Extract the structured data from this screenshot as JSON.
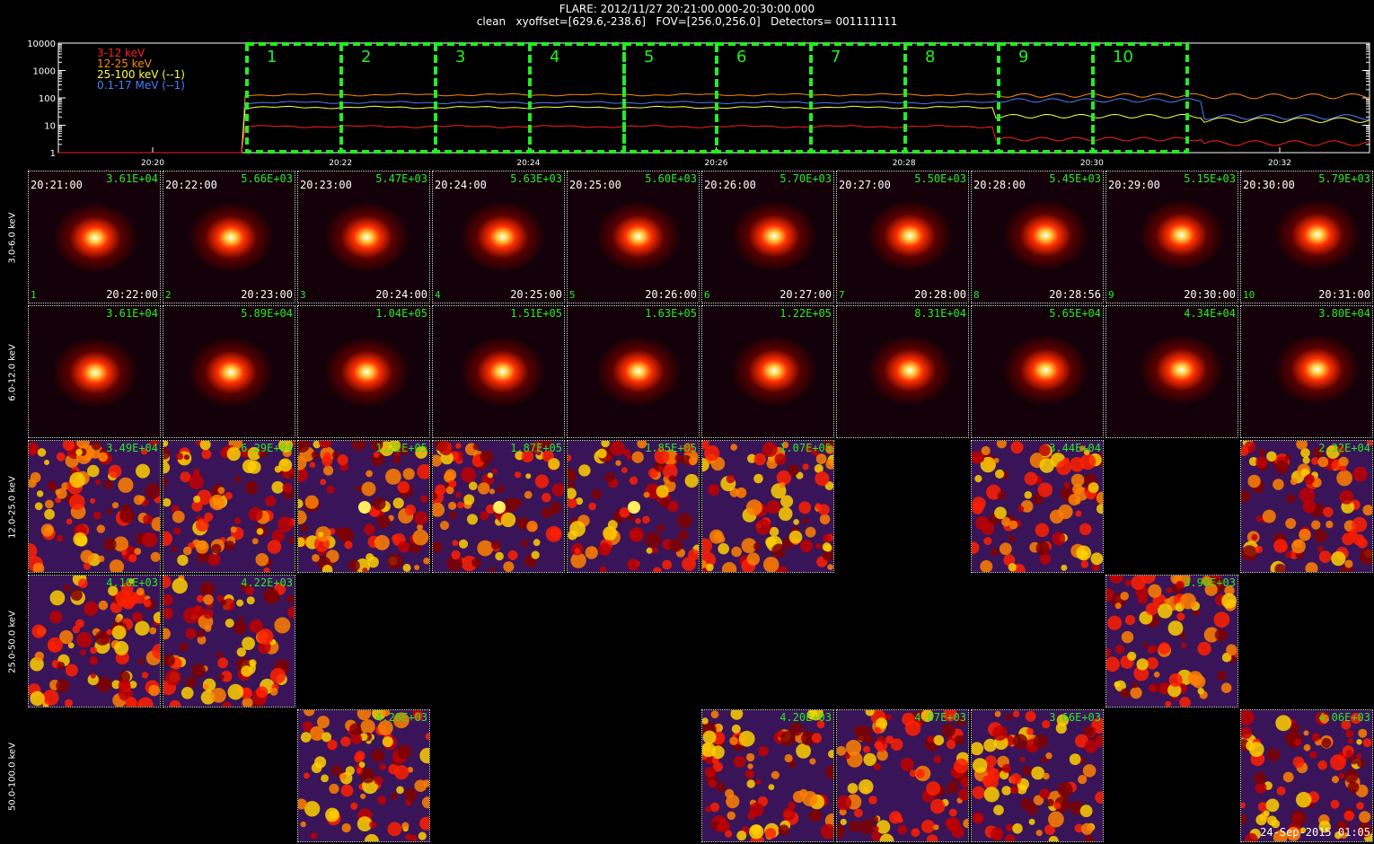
{
  "header": {
    "title": "FLARE: 2012/11/27 20:21:00.000-20:30:00.000",
    "params": "clean   xyoffset=[629.6,-238.6]   FOV=[256.0,256.0]   Detectors= 001111111"
  },
  "lightcurve": {
    "y_ticks": [
      "10000",
      "1000",
      "100",
      "10",
      "1"
    ],
    "x_ticks": [
      "20:20",
      "20:22",
      "20:24",
      "20:26",
      "20:28",
      "20:30",
      "20:32"
    ],
    "legend": [
      {
        "label": "3-12 keV",
        "color": "#ff2020"
      },
      {
        "label": "12-25 keV",
        "color": "#ff8c00"
      },
      {
        "label": "25-100 keV (--1)",
        "color": "#ffff40"
      },
      {
        "label": "0.1-17 MeV (--1)",
        "color": "#4a7fff"
      }
    ],
    "intervals": [
      "1",
      "2",
      "3",
      "4",
      "5",
      "6",
      "7",
      "8",
      "9",
      "10"
    ],
    "interval_color": "#22ee22"
  },
  "row_labels": [
    "3.0-6.0 keV",
    "6.0-12.0 keV",
    "12.0-25.0 keV",
    "25.0-50.0 keV",
    "50.0-100.0 keV"
  ],
  "start_times": [
    "20:21:00",
    "20:22:00",
    "20:23:00",
    "20:24:00",
    "20:25:00",
    "20:26:00",
    "20:27:00",
    "20:28:00",
    "20:29:00",
    "20:30:00"
  ],
  "end_times": [
    "20:22:00",
    "20:23:00",
    "20:24:00",
    "20:25:00",
    "20:26:00",
    "20:27:00",
    "20:28:00",
    "20:28:56",
    "20:30:00",
    "20:31:00"
  ],
  "peaks": [
    [
      "3.61E+04",
      "5.66E+03",
      "5.47E+03",
      "5.63E+03",
      "5.60E+03",
      "5.70E+03",
      "5.50E+03",
      "5.45E+03",
      "5.15E+03",
      "5.79E+03"
    ],
    [
      "3.61E+04",
      "5.89E+04",
      "1.04E+05",
      "1.51E+05",
      "1.63E+05",
      "1.22E+05",
      "8.31E+04",
      "5.65E+04",
      "4.34E+04",
      "3.80E+04"
    ],
    [
      "3.49E+04",
      "6.29E+04",
      "1.22E+05",
      "1.87E+05",
      "1.85E+05",
      "1.07E+05",
      null,
      "3.44E+04",
      null,
      "2.32E+04"
    ],
    [
      "4.10E+03",
      "4.22E+03",
      null,
      null,
      null,
      null,
      null,
      null,
      "3.90E+03",
      null
    ],
    [
      null,
      null,
      "4.28E+03",
      null,
      null,
      "4.20E+03",
      "4.07E+03",
      "3.66E+03",
      null,
      "4.06E+03"
    ]
  ],
  "stamp": "24-Sep-2015 01:05"
}
